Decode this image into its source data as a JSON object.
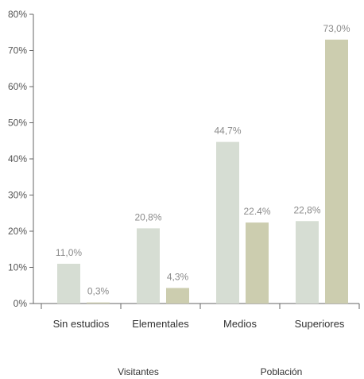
{
  "chart_data": {
    "type": "bar",
    "categories": [
      "Sin estudios",
      "Elementales",
      "Medios",
      "Superiores"
    ],
    "series": [
      {
        "name": "Visitantes",
        "values": [
          11.0,
          20.8,
          44.7,
          22.8
        ],
        "labels": [
          "11,0%",
          "20,8%",
          "44,7%",
          "22,8%"
        ],
        "color": "#d6ddd3"
      },
      {
        "name": "Población",
        "values": [
          0.3,
          4.3,
          22.4,
          73.0
        ],
        "labels": [
          "0,3%",
          "4,3%",
          "22.4%",
          "73,0%"
        ],
        "color": "#cccdaf"
      }
    ],
    "yticks": [
      0,
      10,
      20,
      30,
      40,
      50,
      60,
      70,
      80
    ],
    "ytick_labels": [
      "0%",
      "10%",
      "20%",
      "30%",
      "40%",
      "50%",
      "60%",
      "70%",
      "80%"
    ],
    "ylim": [
      0,
      80
    ],
    "title": "",
    "xlabel": "",
    "ylabel": "",
    "grid": false,
    "legend": "bottom"
  }
}
